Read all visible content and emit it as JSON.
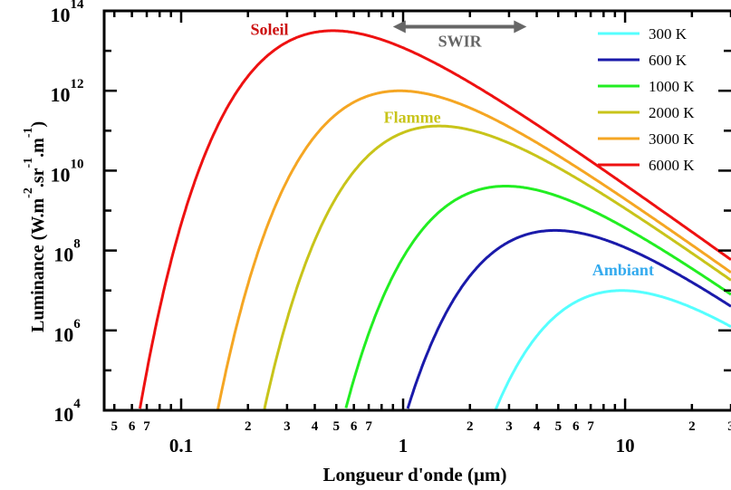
{
  "chart_data": {
    "type": "line",
    "xlabel": "Longueur d'onde (µm)",
    "ylabel": "Luminance (W.m-2.sr-1.m-1)",
    "ylabel_parts": {
      "base1": "Luminance (W.m",
      "exp1": "-2",
      "base2": ".sr",
      "exp2": "-1",
      "base3": ".m",
      "exp3": "-1",
      "base4": ")"
    },
    "x_scale": "log",
    "y_scale": "log",
    "xlim": [
      0.045,
      30
    ],
    "ylim": [
      10000,
      100000000000000.0
    ],
    "x_ticks_major": [
      {
        "value": 0.1,
        "label": "0.1"
      },
      {
        "value": 1,
        "label": "1"
      },
      {
        "value": 10,
        "label": "10"
      }
    ],
    "x_ticks_minor": [
      {
        "value": 0.05,
        "label": "5"
      },
      {
        "value": 0.06,
        "label": "6"
      },
      {
        "value": 0.07,
        "label": "7"
      },
      {
        "value": 0.2,
        "label": "2"
      },
      {
        "value": 0.3,
        "label": "3"
      },
      {
        "value": 0.4,
        "label": "4"
      },
      {
        "value": 0.5,
        "label": "5"
      },
      {
        "value": 0.6,
        "label": "6"
      },
      {
        "value": 0.7,
        "label": "7"
      },
      {
        "value": 2,
        "label": "2"
      },
      {
        "value": 3,
        "label": "3"
      },
      {
        "value": 4,
        "label": "4"
      },
      {
        "value": 5,
        "label": "5"
      },
      {
        "value": 6,
        "label": "6"
      },
      {
        "value": 7,
        "label": "7"
      },
      {
        "value": 20,
        "label": "2"
      },
      {
        "value": 30,
        "label": "3"
      }
    ],
    "y_ticks": [
      {
        "value": 10000,
        "base": "10",
        "exp": "4"
      },
      {
        "value": 1000000,
        "base": "10",
        "exp": "6"
      },
      {
        "value": 100000000,
        "base": "10",
        "exp": "8"
      },
      {
        "value": 10000000000,
        "base": "10",
        "exp": "10"
      },
      {
        "value": 1000000000000,
        "base": "10",
        "exp": "12"
      },
      {
        "value": 100000000000000,
        "base": "10",
        "exp": "14"
      }
    ],
    "series": [
      {
        "name": "300 K",
        "temperature": 300,
        "color": "#55ffff"
      },
      {
        "name": "600 K",
        "temperature": 600,
        "color": "#1a1aaa"
      },
      {
        "name": "1000 K",
        "temperature": 1000,
        "color": "#22ee22"
      },
      {
        "name": "2000 K",
        "temperature": 2000,
        "color": "#c8c41a"
      },
      {
        "name": "3000 K",
        "temperature": 3000,
        "color": "#f5a623"
      },
      {
        "name": "6000 K",
        "temperature": 6000,
        "color": "#ee1111"
      }
    ],
    "annotations": [
      {
        "text": "Soleil",
        "color": "#cc1111",
        "x": 0.25,
        "y": 25000000000000.0
      },
      {
        "text": "Flamme",
        "color": "#c8c41a",
        "x": 1.1,
        "y": 160000000000.0
      },
      {
        "text": "Ambiant",
        "color": "#33aaee",
        "x": 9.8,
        "y": 24000000.0
      }
    ],
    "band": {
      "label": "SWIR",
      "x_start": 0.9,
      "x_end": 3.6,
      "y": 40000000000000.0,
      "color": "#666666"
    },
    "legend_position": "top-right",
    "grid": false
  }
}
